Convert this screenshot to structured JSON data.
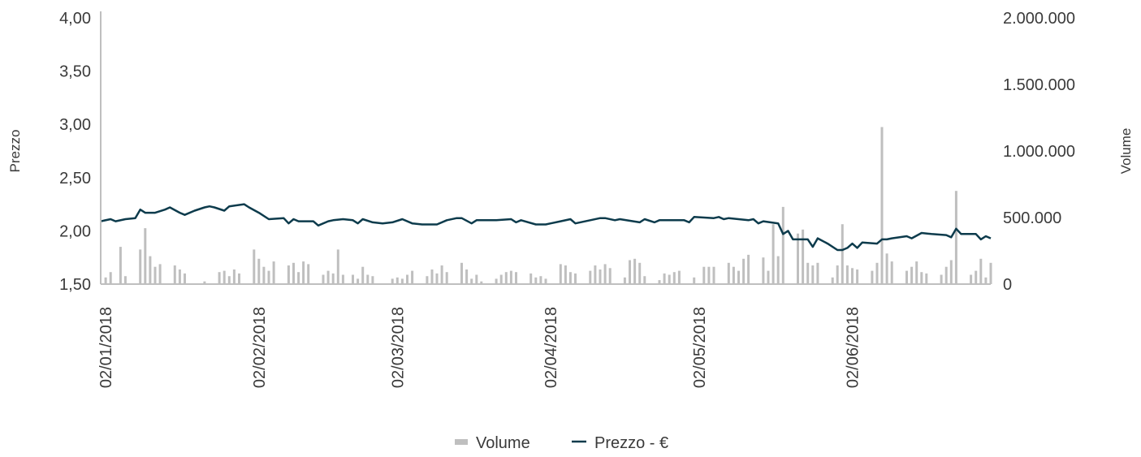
{
  "chart_data": {
    "type": "bar+line",
    "x_type": "date",
    "x_range": [
      "2018-01-01",
      "2018-06-30"
    ],
    "left_axis": {
      "label": "Prezzo",
      "min": 1.5,
      "max": 4.0,
      "ticks": [
        "1,50",
        "2,00",
        "2,50",
        "3,00",
        "3,50",
        "4,00"
      ]
    },
    "right_axis": {
      "label": "Volume",
      "min": 0,
      "max": 2000000,
      "ticks": [
        "0",
        "500.000",
        "1.000.000",
        "1.500.000",
        "2.000.000"
      ]
    },
    "x_ticks": [
      {
        "date": "2018-01-02",
        "label": "02/01/2018"
      },
      {
        "date": "2018-02-02",
        "label": "02/02/2018"
      },
      {
        "date": "2018-03-02",
        "label": "02/03/2018"
      },
      {
        "date": "2018-04-02",
        "label": "02/04/2018"
      },
      {
        "date": "2018-05-02",
        "label": "02/05/2018"
      },
      {
        "date": "2018-06-02",
        "label": "02/06/2018"
      }
    ],
    "legend": {
      "position": "bottom",
      "items": [
        {
          "name": "Volume",
          "marker": "bar",
          "color": "#bfbfbf"
        },
        {
          "name": "Prezzo - €",
          "marker": "line",
          "color": "#0d3b4c"
        }
      ]
    },
    "series": [
      {
        "name": "Volume",
        "type": "bar",
        "axis": "right",
        "color": "#bfbfbf",
        "points": [
          [
            "2018-01-02",
            50000
          ],
          [
            "2018-01-03",
            90000
          ],
          [
            "2018-01-05",
            280000
          ],
          [
            "2018-01-06",
            60000
          ],
          [
            "2018-01-09",
            260000
          ],
          [
            "2018-01-10",
            420000
          ],
          [
            "2018-01-11",
            210000
          ],
          [
            "2018-01-12",
            130000
          ],
          [
            "2018-01-13",
            150000
          ],
          [
            "2018-01-16",
            140000
          ],
          [
            "2018-01-17",
            110000
          ],
          [
            "2018-01-18",
            80000
          ],
          [
            "2018-01-22",
            20000
          ],
          [
            "2018-01-25",
            90000
          ],
          [
            "2018-01-26",
            100000
          ],
          [
            "2018-01-27",
            60000
          ],
          [
            "2018-01-28",
            110000
          ],
          [
            "2018-01-29",
            80000
          ],
          [
            "2018-02-01",
            260000
          ],
          [
            "2018-02-02",
            190000
          ],
          [
            "2018-02-03",
            130000
          ],
          [
            "2018-02-04",
            100000
          ],
          [
            "2018-02-05",
            170000
          ],
          [
            "2018-02-08",
            140000
          ],
          [
            "2018-02-09",
            160000
          ],
          [
            "2018-02-10",
            90000
          ],
          [
            "2018-02-11",
            170000
          ],
          [
            "2018-02-12",
            150000
          ],
          [
            "2018-02-15",
            70000
          ],
          [
            "2018-02-16",
            100000
          ],
          [
            "2018-02-17",
            80000
          ],
          [
            "2018-02-18",
            260000
          ],
          [
            "2018-02-19",
            70000
          ],
          [
            "2018-02-21",
            70000
          ],
          [
            "2018-02-22",
            40000
          ],
          [
            "2018-02-23",
            130000
          ],
          [
            "2018-02-24",
            70000
          ],
          [
            "2018-02-25",
            60000
          ],
          [
            "2018-03-01",
            40000
          ],
          [
            "2018-03-02",
            50000
          ],
          [
            "2018-03-03",
            40000
          ],
          [
            "2018-03-04",
            70000
          ],
          [
            "2018-03-05",
            100000
          ],
          [
            "2018-03-08",
            60000
          ],
          [
            "2018-03-09",
            110000
          ],
          [
            "2018-03-10",
            80000
          ],
          [
            "2018-03-11",
            140000
          ],
          [
            "2018-03-12",
            90000
          ],
          [
            "2018-03-15",
            160000
          ],
          [
            "2018-03-16",
            110000
          ],
          [
            "2018-03-17",
            40000
          ],
          [
            "2018-03-18",
            70000
          ],
          [
            "2018-03-19",
            20000
          ],
          [
            "2018-03-22",
            40000
          ],
          [
            "2018-03-23",
            70000
          ],
          [
            "2018-03-24",
            90000
          ],
          [
            "2018-03-25",
            100000
          ],
          [
            "2018-03-26",
            90000
          ],
          [
            "2018-03-29",
            80000
          ],
          [
            "2018-03-30",
            50000
          ],
          [
            "2018-03-31",
            60000
          ],
          [
            "2018-04-01",
            40000
          ],
          [
            "2018-04-04",
            150000
          ],
          [
            "2018-04-05",
            140000
          ],
          [
            "2018-04-06",
            90000
          ],
          [
            "2018-04-07",
            80000
          ],
          [
            "2018-04-10",
            100000
          ],
          [
            "2018-04-11",
            140000
          ],
          [
            "2018-04-12",
            110000
          ],
          [
            "2018-04-13",
            150000
          ],
          [
            "2018-04-14",
            120000
          ],
          [
            "2018-04-17",
            50000
          ],
          [
            "2018-04-18",
            180000
          ],
          [
            "2018-04-19",
            190000
          ],
          [
            "2018-04-20",
            160000
          ],
          [
            "2018-04-21",
            60000
          ],
          [
            "2018-04-24",
            30000
          ],
          [
            "2018-04-25",
            80000
          ],
          [
            "2018-04-26",
            70000
          ],
          [
            "2018-04-27",
            90000
          ],
          [
            "2018-04-28",
            100000
          ],
          [
            "2018-05-01",
            50000
          ],
          [
            "2018-05-03",
            130000
          ],
          [
            "2018-05-04",
            130000
          ],
          [
            "2018-05-05",
            130000
          ],
          [
            "2018-05-08",
            160000
          ],
          [
            "2018-05-09",
            130000
          ],
          [
            "2018-05-10",
            100000
          ],
          [
            "2018-05-11",
            190000
          ],
          [
            "2018-05-12",
            220000
          ],
          [
            "2018-05-15",
            200000
          ],
          [
            "2018-05-16",
            100000
          ],
          [
            "2018-05-17",
            450000
          ],
          [
            "2018-05-18",
            210000
          ],
          [
            "2018-05-19",
            580000
          ],
          [
            "2018-05-22",
            380000
          ],
          [
            "2018-05-23",
            410000
          ],
          [
            "2018-05-24",
            160000
          ],
          [
            "2018-05-25",
            140000
          ],
          [
            "2018-05-26",
            160000
          ],
          [
            "2018-05-29",
            50000
          ],
          [
            "2018-05-30",
            140000
          ],
          [
            "2018-05-31",
            450000
          ],
          [
            "2018-06-01",
            140000
          ],
          [
            "2018-06-02",
            120000
          ],
          [
            "2018-06-03",
            110000
          ],
          [
            "2018-06-06",
            100000
          ],
          [
            "2018-06-07",
            160000
          ],
          [
            "2018-06-08",
            1180000
          ],
          [
            "2018-06-09",
            230000
          ],
          [
            "2018-06-10",
            170000
          ],
          [
            "2018-06-13",
            100000
          ],
          [
            "2018-06-14",
            130000
          ],
          [
            "2018-06-15",
            170000
          ],
          [
            "2018-06-16",
            90000
          ],
          [
            "2018-06-17",
            80000
          ],
          [
            "2018-06-20",
            70000
          ],
          [
            "2018-06-21",
            130000
          ],
          [
            "2018-06-22",
            180000
          ],
          [
            "2018-06-23",
            700000
          ],
          [
            "2018-06-26",
            70000
          ],
          [
            "2018-06-27",
            100000
          ],
          [
            "2018-06-28",
            190000
          ],
          [
            "2018-06-29",
            50000
          ],
          [
            "2018-06-30",
            160000
          ]
        ]
      },
      {
        "name": "Prezzo - €",
        "type": "line",
        "axis": "left",
        "color": "#0d3b4c",
        "points": [
          [
            "2018-01-01",
            2.09
          ],
          [
            "2018-01-03",
            2.11
          ],
          [
            "2018-01-04",
            2.09
          ],
          [
            "2018-01-06",
            2.11
          ],
          [
            "2018-01-08",
            2.12
          ],
          [
            "2018-01-09",
            2.2
          ],
          [
            "2018-01-10",
            2.17
          ],
          [
            "2018-01-12",
            2.17
          ],
          [
            "2018-01-14",
            2.2
          ],
          [
            "2018-01-15",
            2.22
          ],
          [
            "2018-01-17",
            2.17
          ],
          [
            "2018-01-18",
            2.15
          ],
          [
            "2018-01-20",
            2.19
          ],
          [
            "2018-01-22",
            2.22
          ],
          [
            "2018-01-23",
            2.23
          ],
          [
            "2018-01-24",
            2.22
          ],
          [
            "2018-01-26",
            2.19
          ],
          [
            "2018-01-27",
            2.23
          ],
          [
            "2018-01-30",
            2.25
          ],
          [
            "2018-01-31",
            2.22
          ],
          [
            "2018-02-02",
            2.17
          ],
          [
            "2018-02-04",
            2.11
          ],
          [
            "2018-02-07",
            2.12
          ],
          [
            "2018-02-08",
            2.07
          ],
          [
            "2018-02-09",
            2.11
          ],
          [
            "2018-02-10",
            2.09
          ],
          [
            "2018-02-13",
            2.09
          ],
          [
            "2018-02-14",
            2.05
          ],
          [
            "2018-02-16",
            2.09
          ],
          [
            "2018-02-17",
            2.1
          ],
          [
            "2018-02-19",
            2.11
          ],
          [
            "2018-02-21",
            2.1
          ],
          [
            "2018-02-22",
            2.07
          ],
          [
            "2018-02-23",
            2.11
          ],
          [
            "2018-02-25",
            2.08
          ],
          [
            "2018-02-27",
            2.07
          ],
          [
            "2018-03-01",
            2.08
          ],
          [
            "2018-03-03",
            2.11
          ],
          [
            "2018-03-05",
            2.07
          ],
          [
            "2018-03-07",
            2.06
          ],
          [
            "2018-03-10",
            2.06
          ],
          [
            "2018-03-12",
            2.1
          ],
          [
            "2018-03-14",
            2.12
          ],
          [
            "2018-03-15",
            2.12
          ],
          [
            "2018-03-17",
            2.07
          ],
          [
            "2018-03-18",
            2.1
          ],
          [
            "2018-03-22",
            2.1
          ],
          [
            "2018-03-25",
            2.11
          ],
          [
            "2018-03-26",
            2.08
          ],
          [
            "2018-03-27",
            2.1
          ],
          [
            "2018-03-30",
            2.06
          ],
          [
            "2018-04-01",
            2.06
          ],
          [
            "2018-04-02",
            2.07
          ],
          [
            "2018-04-04",
            2.09
          ],
          [
            "2018-04-06",
            2.11
          ],
          [
            "2018-04-07",
            2.07
          ],
          [
            "2018-04-10",
            2.1
          ],
          [
            "2018-04-12",
            2.12
          ],
          [
            "2018-04-13",
            2.12
          ],
          [
            "2018-04-15",
            2.1
          ],
          [
            "2018-04-16",
            2.11
          ],
          [
            "2018-04-20",
            2.08
          ],
          [
            "2018-04-21",
            2.11
          ],
          [
            "2018-04-23",
            2.08
          ],
          [
            "2018-04-24",
            2.1
          ],
          [
            "2018-04-29",
            2.1
          ],
          [
            "2018-04-30",
            2.08
          ],
          [
            "2018-05-01",
            2.13
          ],
          [
            "2018-05-05",
            2.12
          ],
          [
            "2018-05-06",
            2.13
          ],
          [
            "2018-05-07",
            2.11
          ],
          [
            "2018-05-08",
            2.12
          ],
          [
            "2018-05-12",
            2.1
          ],
          [
            "2018-05-13",
            2.11
          ],
          [
            "2018-05-14",
            2.07
          ],
          [
            "2018-05-15",
            2.09
          ],
          [
            "2018-05-18",
            2.07
          ],
          [
            "2018-05-19",
            1.97
          ],
          [
            "2018-05-20",
            2.0
          ],
          [
            "2018-05-21",
            1.92
          ],
          [
            "2018-05-24",
            1.92
          ],
          [
            "2018-05-25",
            1.85
          ],
          [
            "2018-05-26",
            1.93
          ],
          [
            "2018-05-28",
            1.88
          ],
          [
            "2018-05-30",
            1.82
          ],
          [
            "2018-05-31",
            1.82
          ],
          [
            "2018-06-01",
            1.84
          ],
          [
            "2018-06-02",
            1.88
          ],
          [
            "2018-06-03",
            1.84
          ],
          [
            "2018-06-04",
            1.89
          ],
          [
            "2018-06-07",
            1.88
          ],
          [
            "2018-06-08",
            1.92
          ],
          [
            "2018-06-09",
            1.92
          ],
          [
            "2018-06-10",
            1.93
          ],
          [
            "2018-06-13",
            1.95
          ],
          [
            "2018-06-14",
            1.93
          ],
          [
            "2018-06-16",
            1.98
          ],
          [
            "2018-06-18",
            1.97
          ],
          [
            "2018-06-21",
            1.96
          ],
          [
            "2018-06-22",
            1.94
          ],
          [
            "2018-06-23",
            2.02
          ],
          [
            "2018-06-24",
            1.97
          ],
          [
            "2018-06-27",
            1.97
          ],
          [
            "2018-06-28",
            1.92
          ],
          [
            "2018-06-29",
            1.95
          ],
          [
            "2018-06-30",
            1.93
          ]
        ]
      }
    ]
  }
}
